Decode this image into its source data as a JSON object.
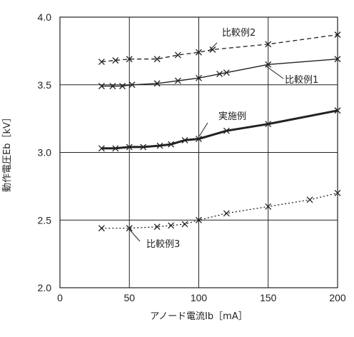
{
  "chart_data": {
    "type": "line",
    "xlabel": "アノード電流Ib［mA］",
    "ylabel": "動作電圧Eb［kV］",
    "xlim": [
      0,
      200
    ],
    "ylim": [
      2.0,
      4.0
    ],
    "xticks": [
      0,
      50,
      100,
      150,
      200
    ],
    "yticks": [
      2.0,
      2.5,
      3.0,
      3.5,
      4.0
    ],
    "xtick_labels": [
      "0",
      "50",
      "100",
      "150",
      "200"
    ],
    "ytick_labels": [
      "2.0",
      "2.5",
      "3.0",
      "3.5",
      "4.0"
    ],
    "grid": true,
    "series": [
      {
        "name": "比較例2",
        "style": "dashed",
        "points": [
          [
            30,
            3.67
          ],
          [
            40,
            3.68
          ],
          [
            50,
            3.69
          ],
          [
            70,
            3.69
          ],
          [
            85,
            3.72
          ],
          [
            100,
            3.74
          ],
          [
            110,
            3.76
          ],
          [
            150,
            3.8
          ],
          [
            200,
            3.87
          ]
        ]
      },
      {
        "name": "比較例1",
        "style": "solid-thin",
        "points": [
          [
            30,
            3.49
          ],
          [
            38,
            3.49
          ],
          [
            45,
            3.49
          ],
          [
            52,
            3.5
          ],
          [
            70,
            3.51
          ],
          [
            85,
            3.53
          ],
          [
            100,
            3.55
          ],
          [
            115,
            3.58
          ],
          [
            120,
            3.59
          ],
          [
            150,
            3.65
          ],
          [
            200,
            3.69
          ]
        ]
      },
      {
        "name": "実施例",
        "style": "solid-thick",
        "points": [
          [
            30,
            3.03
          ],
          [
            40,
            3.03
          ],
          [
            50,
            3.04
          ],
          [
            60,
            3.04
          ],
          [
            72,
            3.05
          ],
          [
            80,
            3.06
          ],
          [
            90,
            3.09
          ],
          [
            100,
            3.1
          ],
          [
            120,
            3.16
          ],
          [
            150,
            3.21
          ],
          [
            200,
            3.31
          ]
        ]
      },
      {
        "name": "比較例3",
        "style": "dotted",
        "points": [
          [
            30,
            2.44
          ],
          [
            50,
            2.44
          ],
          [
            70,
            2.45
          ],
          [
            80,
            2.46
          ],
          [
            90,
            2.47
          ],
          [
            100,
            2.5
          ],
          [
            120,
            2.55
          ],
          [
            150,
            2.6
          ],
          [
            180,
            2.65
          ],
          [
            200,
            2.7
          ]
        ]
      }
    ],
    "annotations": [
      {
        "text": "比較例2",
        "series": 0
      },
      {
        "text": "比較例1",
        "series": 1
      },
      {
        "text": "実施例",
        "series": 2
      },
      {
        "text": "比較例3",
        "series": 3
      }
    ]
  }
}
